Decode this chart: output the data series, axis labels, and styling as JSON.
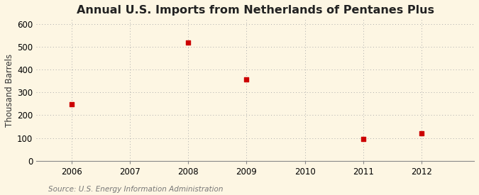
{
  "title": "Annual U.S. Imports from Netherlands of Pentanes Plus",
  "ylabel": "Thousand Barrels",
  "source": "Source: U.S. Energy Information Administration",
  "x_values": [
    2006,
    2008,
    2009,
    2011,
    2012
  ],
  "y_values": [
    248,
    519,
    357,
    97,
    120
  ],
  "xlim": [
    2005.4,
    2012.9
  ],
  "ylim": [
    0,
    620
  ],
  "yticks": [
    0,
    100,
    200,
    300,
    400,
    500,
    600
  ],
  "xticks": [
    2006,
    2007,
    2008,
    2009,
    2010,
    2011,
    2012
  ],
  "marker_color": "#cc0000",
  "marker": "s",
  "marker_size": 4,
  "bg_color": "#fdf6e3",
  "grid_color": "#aaaaaa",
  "title_fontsize": 11.5,
  "label_fontsize": 8.5,
  "tick_fontsize": 8.5,
  "source_fontsize": 7.5
}
